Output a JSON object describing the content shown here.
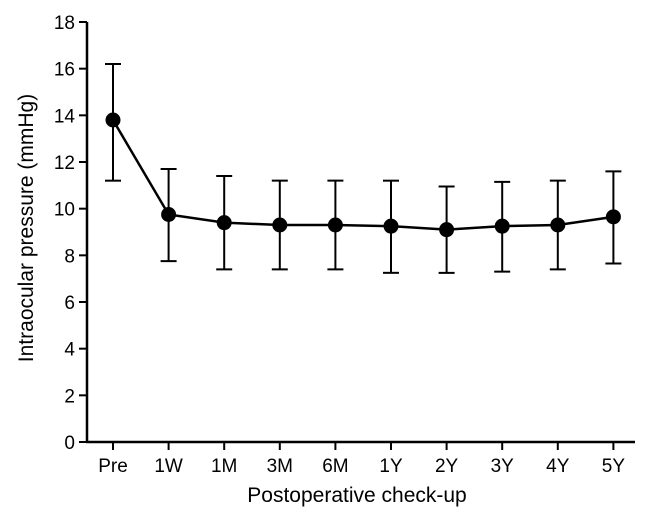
{
  "chart_data": {
    "type": "line",
    "title": "",
    "xlabel": "Postoperative check-up",
    "ylabel": "Intraocular pressure (mmHg)",
    "categories": [
      "Pre",
      "1W",
      "1M",
      "3M",
      "6M",
      "1Y",
      "2Y",
      "3Y",
      "4Y",
      "5Y"
    ],
    "ylim": [
      0,
      18
    ],
    "yticks": [
      0,
      2,
      4,
      6,
      8,
      10,
      12,
      14,
      16,
      18
    ],
    "grid": false,
    "series": [
      {
        "values": [
          13.8,
          9.75,
          9.4,
          9.3,
          9.3,
          9.25,
          9.1,
          9.25,
          9.3,
          9.65
        ],
        "error_upper": [
          16.2,
          11.7,
          11.4,
          11.2,
          11.2,
          11.2,
          10.95,
          11.15,
          11.2,
          11.6
        ],
        "error_lower": [
          11.2,
          7.75,
          7.4,
          7.4,
          7.4,
          7.25,
          7.25,
          7.3,
          7.4,
          7.65
        ],
        "color": "#000000",
        "marker": "circle"
      }
    ]
  }
}
